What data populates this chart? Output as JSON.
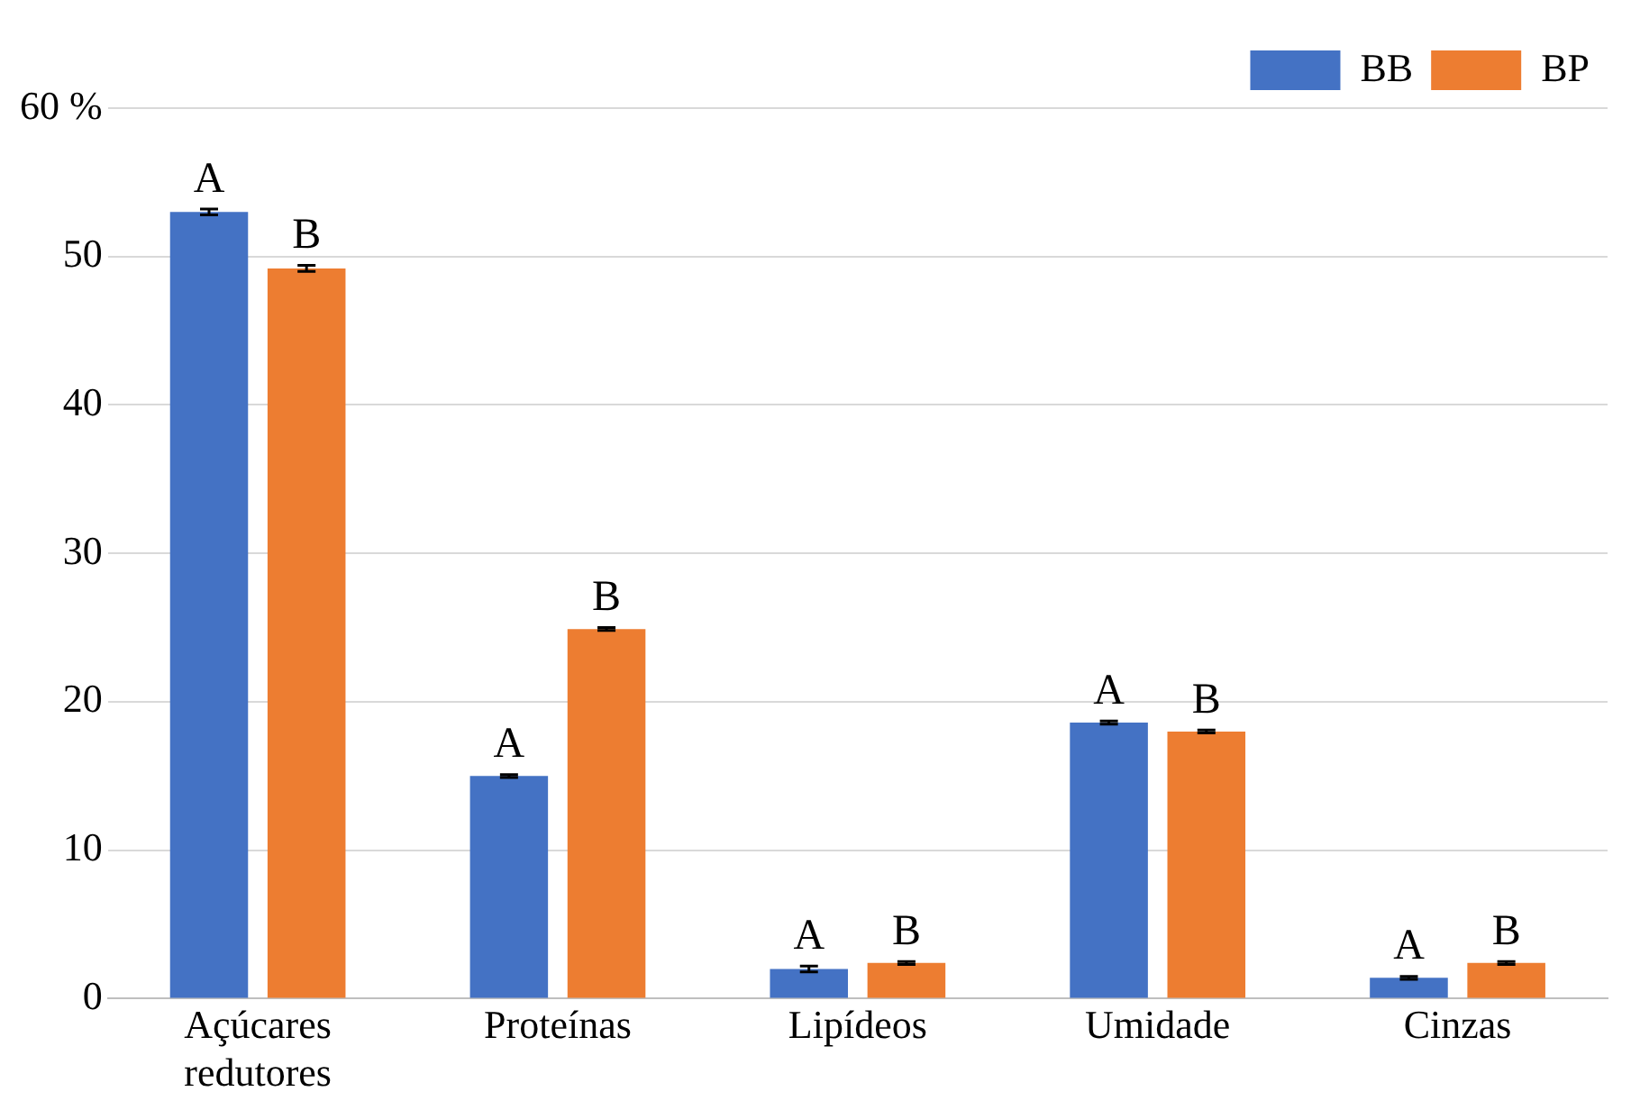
{
  "chart_data": {
    "type": "bar",
    "categories": [
      "Açúcares redutores",
      "Proteínas",
      "Lipídeos",
      "Umidade",
      "Cinzas"
    ],
    "series": [
      {
        "name": "BB",
        "color": "#4472c4",
        "values": [
          53.0,
          15.0,
          2.0,
          18.6,
          1.4
        ],
        "errors": [
          0.2,
          0.1,
          0.2,
          0.1,
          0.1
        ],
        "value_labels": [
          "A",
          "A",
          "A",
          "A",
          "A"
        ]
      },
      {
        "name": "BP",
        "color": "#ed7d31",
        "values": [
          49.2,
          24.9,
          2.4,
          18.0,
          2.4
        ],
        "errors": [
          0.2,
          0.1,
          0.1,
          0.1,
          0.1
        ],
        "value_labels": [
          "B",
          "B",
          "B",
          "B",
          "B"
        ]
      }
    ],
    "ylim": [
      0,
      60
    ],
    "yticks": [
      0,
      10,
      20,
      30,
      40,
      50,
      {
        "value": 60,
        "label": "60 %"
      }
    ],
    "grid": "y",
    "legend": "top right"
  }
}
